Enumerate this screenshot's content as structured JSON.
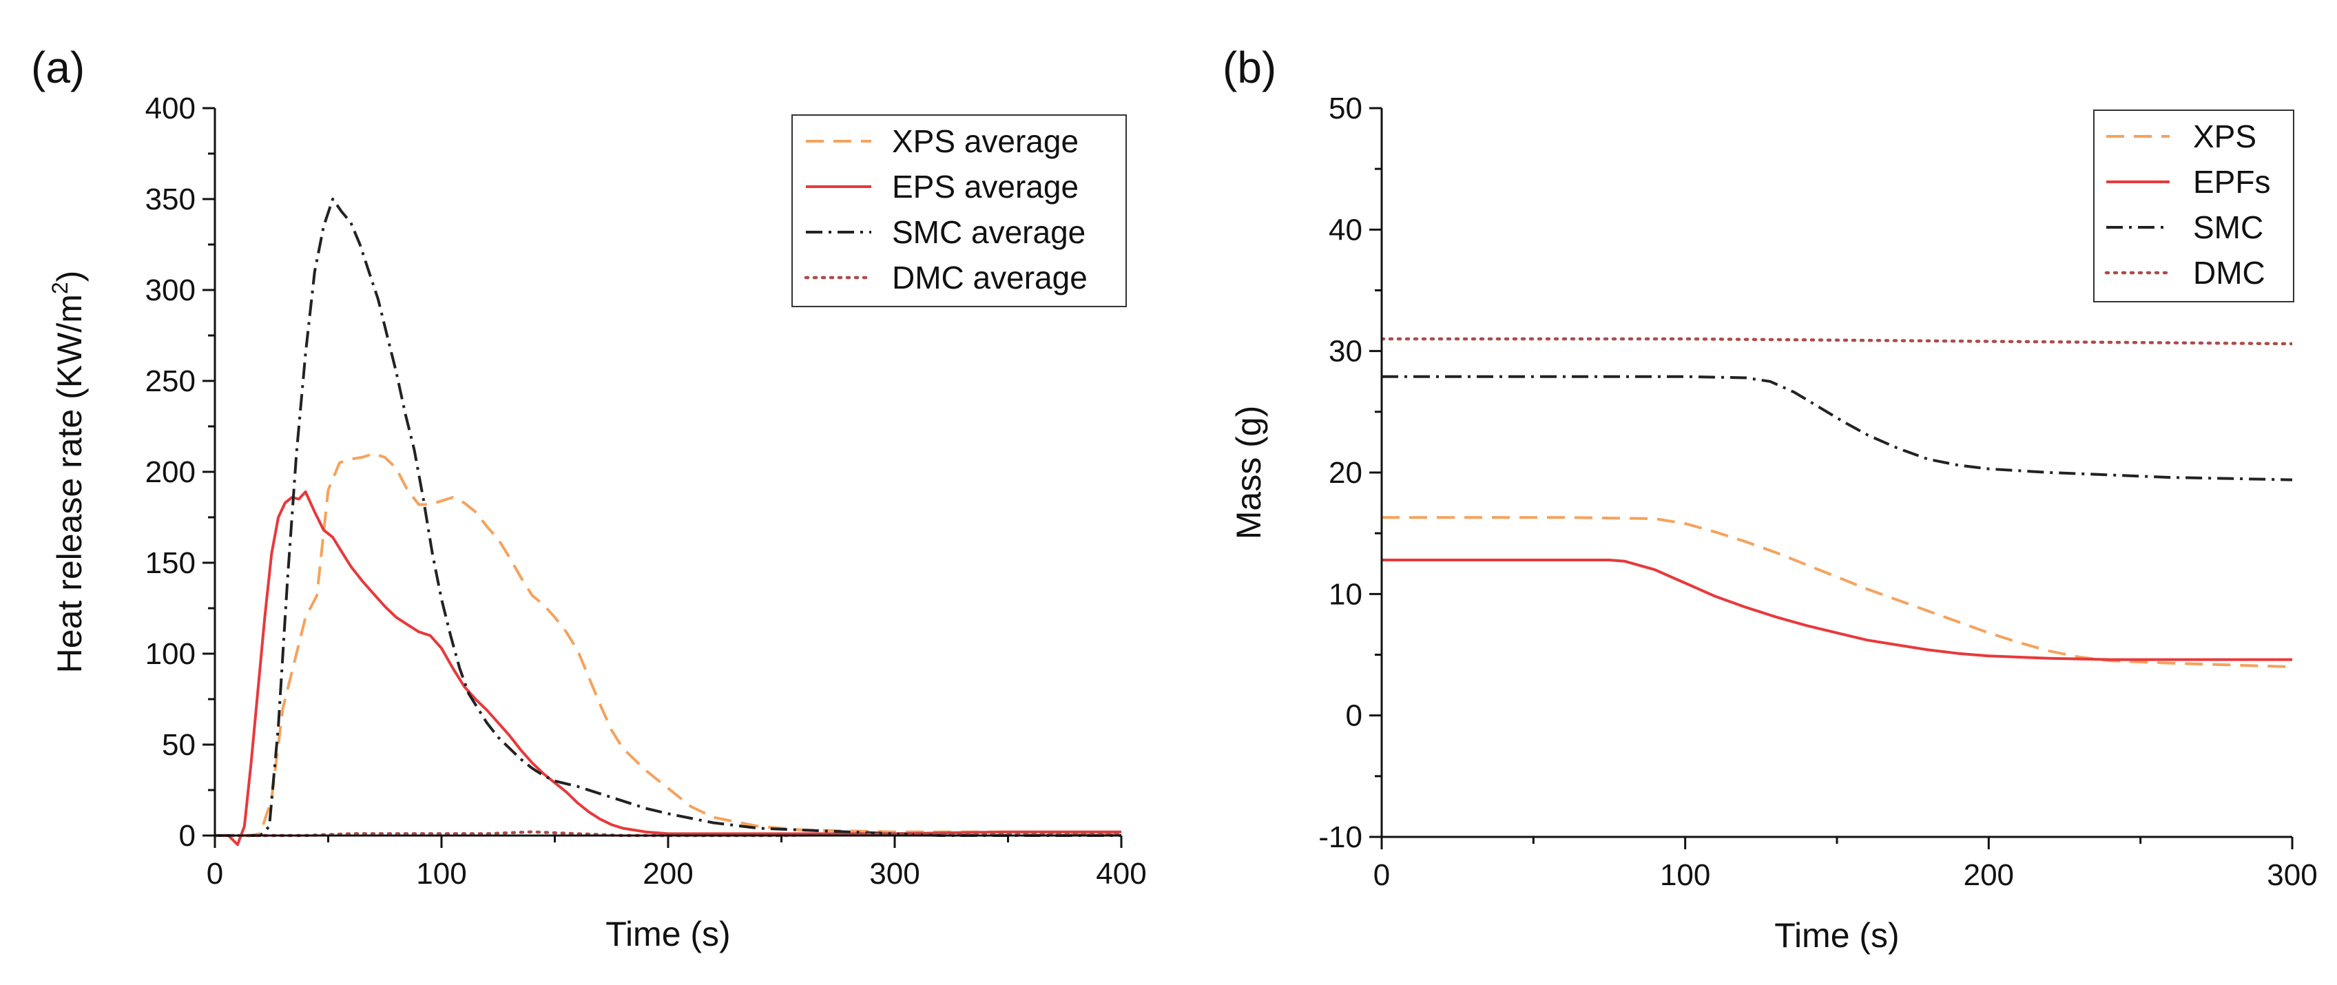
{
  "chart_data": [
    {
      "panel": "(a)",
      "type": "line",
      "title": "",
      "xlabel": "Time (s)",
      "ylabel": "Heat release rate (KW/m",
      "ylabel_sup": "2",
      "ylabel_close": ")",
      "xlim": [
        0,
        400
      ],
      "ylim": [
        0,
        400
      ],
      "xticks": [
        0,
        100,
        200,
        300,
        400
      ],
      "yticks": [
        0,
        50,
        100,
        150,
        200,
        250,
        300,
        350,
        400
      ],
      "grid": false,
      "legend_position": "top-right",
      "series": [
        {
          "name": "XPS average",
          "color": "#f5a25d",
          "dash": "dashed",
          "points": [
            [
              0,
              0
            ],
            [
              15,
              0
            ],
            [
              20,
              1
            ],
            [
              25,
              20
            ],
            [
              30,
              70
            ],
            [
              35,
              95
            ],
            [
              40,
              120
            ],
            [
              45,
              132
            ],
            [
              50,
              190
            ],
            [
              55,
              205
            ],
            [
              60,
              207
            ],
            [
              65,
              208
            ],
            [
              70,
              210
            ],
            [
              75,
              208
            ],
            [
              80,
              202
            ],
            [
              85,
              190
            ],
            [
              90,
              182
            ],
            [
              95,
              182
            ],
            [
              100,
              184
            ],
            [
              105,
              186
            ],
            [
              110,
              183
            ],
            [
              115,
              178
            ],
            [
              120,
              170
            ],
            [
              125,
              163
            ],
            [
              130,
              153
            ],
            [
              135,
              142
            ],
            [
              140,
              132
            ],
            [
              145,
              127
            ],
            [
              150,
              120
            ],
            [
              155,
              112
            ],
            [
              160,
              102
            ],
            [
              165,
              87
            ],
            [
              170,
              72
            ],
            [
              175,
              58
            ],
            [
              180,
              48
            ],
            [
              185,
              42
            ],
            [
              190,
              36
            ],
            [
              200,
              26
            ],
            [
              210,
              16
            ],
            [
              220,
              10
            ],
            [
              240,
              5
            ],
            [
              260,
              3
            ],
            [
              300,
              2
            ],
            [
              350,
              2
            ],
            [
              400,
              1
            ]
          ]
        },
        {
          "name": "EPS average",
          "color": "#e8393b",
          "dash": "solid",
          "points": [
            [
              0,
              0
            ],
            [
              6,
              0
            ],
            [
              10,
              -5
            ],
            [
              13,
              5
            ],
            [
              16,
              40
            ],
            [
              19,
              80
            ],
            [
              22,
              120
            ],
            [
              25,
              155
            ],
            [
              28,
              175
            ],
            [
              31,
              183
            ],
            [
              34,
              186
            ],
            [
              37,
              185
            ],
            [
              40,
              189
            ],
            [
              44,
              178
            ],
            [
              48,
              168
            ],
            [
              52,
              164
            ],
            [
              56,
              156
            ],
            [
              60,
              148
            ],
            [
              65,
              140
            ],
            [
              70,
              133
            ],
            [
              75,
              126
            ],
            [
              80,
              120
            ],
            [
              85,
              116
            ],
            [
              90,
              112
            ],
            [
              95,
              110
            ],
            [
              100,
              103
            ],
            [
              105,
              92
            ],
            [
              110,
              82
            ],
            [
              115,
              75
            ],
            [
              120,
              69
            ],
            [
              125,
              62
            ],
            [
              130,
              55
            ],
            [
              135,
              47
            ],
            [
              140,
              40
            ],
            [
              145,
              34
            ],
            [
              150,
              29
            ],
            [
              155,
              24
            ],
            [
              160,
              18
            ],
            [
              165,
              13
            ],
            [
              170,
              9
            ],
            [
              175,
              6
            ],
            [
              180,
              4
            ],
            [
              190,
              2
            ],
            [
              200,
              1
            ],
            [
              250,
              1
            ],
            [
              300,
              1
            ],
            [
              350,
              2
            ],
            [
              400,
              2
            ]
          ]
        },
        {
          "name": "SMC average",
          "color": "#222222",
          "dash": "dashdot",
          "points": [
            [
              0,
              0
            ],
            [
              20,
              0
            ],
            [
              24,
              5
            ],
            [
              28,
              60
            ],
            [
              32,
              140
            ],
            [
              36,
              210
            ],
            [
              40,
              265
            ],
            [
              44,
              310
            ],
            [
              48,
              335
            ],
            [
              52,
              350
            ],
            [
              56,
              343
            ],
            [
              60,
              337
            ],
            [
              64,
              325
            ],
            [
              68,
              310
            ],
            [
              72,
              295
            ],
            [
              76,
              275
            ],
            [
              80,
              255
            ],
            [
              84,
              232
            ],
            [
              88,
              212
            ],
            [
              92,
              185
            ],
            [
              96,
              155
            ],
            [
              100,
              130
            ],
            [
              104,
              110
            ],
            [
              108,
              92
            ],
            [
              112,
              78
            ],
            [
              116,
              70
            ],
            [
              120,
              62
            ],
            [
              125,
              54
            ],
            [
              130,
              48
            ],
            [
              135,
              42
            ],
            [
              140,
              37
            ],
            [
              145,
              33
            ],
            [
              150,
              30
            ],
            [
              160,
              27
            ],
            [
              170,
              23
            ],
            [
              180,
              19
            ],
            [
              190,
              15
            ],
            [
              200,
              12
            ],
            [
              220,
              7
            ],
            [
              240,
              4
            ],
            [
              260,
              3
            ],
            [
              300,
              1
            ],
            [
              320,
              0
            ],
            [
              340,
              0
            ],
            [
              400,
              0
            ]
          ]
        },
        {
          "name": "DMC average",
          "color": "#b04a4a",
          "dash": "dotted",
          "points": [
            [
              0,
              0
            ],
            [
              20,
              0
            ],
            [
              40,
              0
            ],
            [
              60,
              1
            ],
            [
              80,
              1
            ],
            [
              100,
              1
            ],
            [
              120,
              1
            ],
            [
              140,
              2
            ],
            [
              160,
              1
            ],
            [
              180,
              0
            ],
            [
              200,
              0
            ],
            [
              250,
              0
            ],
            [
              300,
              1
            ],
            [
              350,
              1
            ],
            [
              400,
              1
            ]
          ]
        }
      ]
    },
    {
      "panel": "(b)",
      "type": "line",
      "title": "",
      "xlabel": "Time (s)",
      "ylabel": "Mass (g)",
      "xlim": [
        0,
        300
      ],
      "ylim": [
        -10,
        50
      ],
      "xticks": [
        0,
        100,
        200,
        300
      ],
      "yticks": [
        -10,
        0,
        10,
        20,
        30,
        40,
        50
      ],
      "grid": false,
      "legend_position": "top-right",
      "series": [
        {
          "name": "XPS",
          "color": "#f5a25d",
          "dash": "dashed",
          "points": [
            [
              0,
              16.3
            ],
            [
              60,
              16.3
            ],
            [
              90,
              16.2
            ],
            [
              100,
              15.8
            ],
            [
              110,
              15.1
            ],
            [
              120,
              14.3
            ],
            [
              130,
              13.4
            ],
            [
              140,
              12.4
            ],
            [
              150,
              11.4
            ],
            [
              160,
              10.4
            ],
            [
              170,
              9.5
            ],
            [
              180,
              8.6
            ],
            [
              190,
              7.7
            ],
            [
              200,
              6.8
            ],
            [
              210,
              6.0
            ],
            [
              220,
              5.3
            ],
            [
              230,
              4.8
            ],
            [
              240,
              4.5
            ],
            [
              260,
              4.3
            ],
            [
              300,
              4.0
            ]
          ]
        },
        {
          "name": "EPFs",
          "color": "#e8393b",
          "dash": "solid",
          "points": [
            [
              0,
              12.8
            ],
            [
              75,
              12.8
            ],
            [
              80,
              12.7
            ],
            [
              90,
              12.0
            ],
            [
              100,
              10.9
            ],
            [
              110,
              9.8
            ],
            [
              120,
              8.9
            ],
            [
              130,
              8.1
            ],
            [
              140,
              7.4
            ],
            [
              150,
              6.8
            ],
            [
              160,
              6.2
            ],
            [
              170,
              5.8
            ],
            [
              180,
              5.4
            ],
            [
              190,
              5.1
            ],
            [
              200,
              4.9
            ],
            [
              220,
              4.7
            ],
            [
              240,
              4.6
            ],
            [
              270,
              4.6
            ],
            [
              300,
              4.6
            ]
          ]
        },
        {
          "name": "SMC",
          "color": "#222222",
          "dash": "dashdot",
          "points": [
            [
              0,
              27.9
            ],
            [
              50,
              27.9
            ],
            [
              100,
              27.9
            ],
            [
              120,
              27.8
            ],
            [
              128,
              27.5
            ],
            [
              136,
              26.6
            ],
            [
              144,
              25.4
            ],
            [
              152,
              24.2
            ],
            [
              160,
              23.1
            ],
            [
              170,
              22.0
            ],
            [
              180,
              21.1
            ],
            [
              190,
              20.6
            ],
            [
              200,
              20.3
            ],
            [
              220,
              20.0
            ],
            [
              240,
              19.8
            ],
            [
              260,
              19.6
            ],
            [
              280,
              19.5
            ],
            [
              300,
              19.4
            ]
          ]
        },
        {
          "name": "DMC",
          "color": "#b04a4a",
          "dash": "dotted",
          "points": [
            [
              0,
              31.0
            ],
            [
              50,
              31.0
            ],
            [
              100,
              31.0
            ],
            [
              150,
              30.9
            ],
            [
              200,
              30.8
            ],
            [
              250,
              30.7
            ],
            [
              300,
              30.6
            ]
          ]
        }
      ]
    }
  ]
}
